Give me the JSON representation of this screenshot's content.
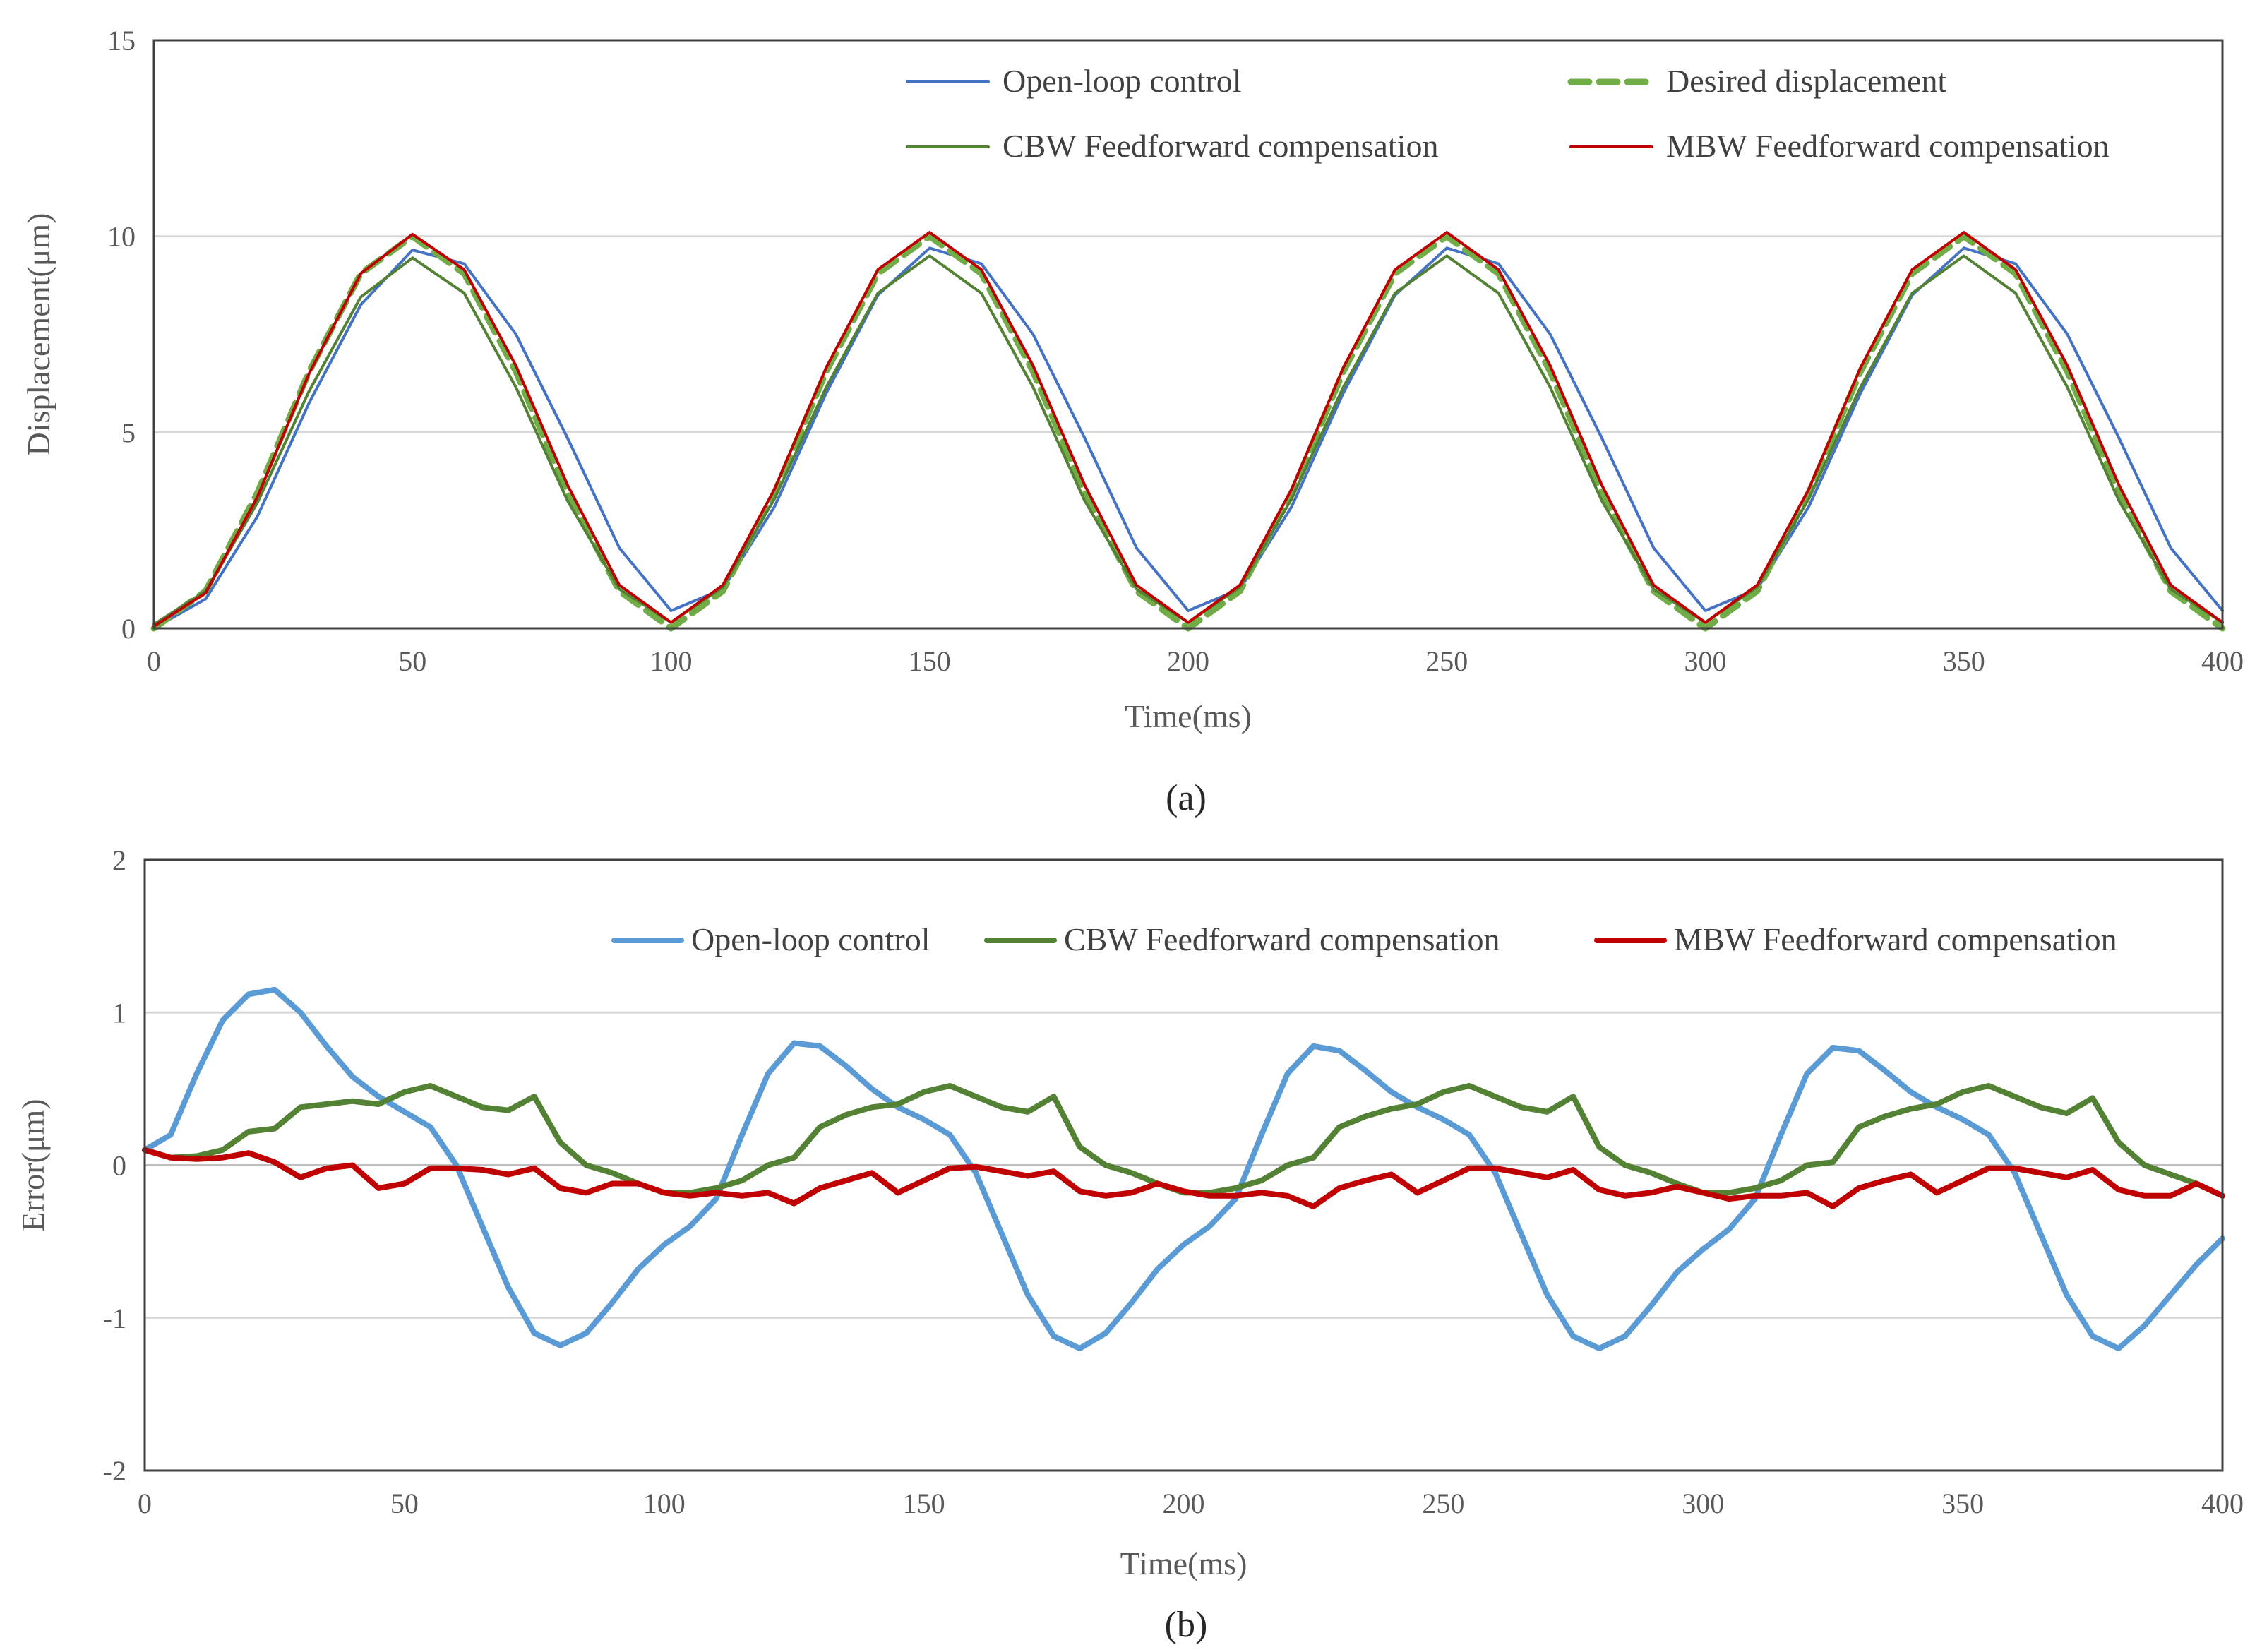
{
  "chart_data": [
    {
      "type": "line",
      "panel_caption": "(a)",
      "xlabel": "Time(ms)",
      "ylabel": "Displacement(μm)",
      "xlim": [
        0,
        400
      ],
      "ylim": [
        0,
        15
      ],
      "x_ticks": [
        0,
        50,
        100,
        150,
        200,
        250,
        300,
        350,
        400
      ],
      "y_ticks": [
        0,
        5,
        10,
        15
      ],
      "grid": "horizontal",
      "legend_position": "top-right",
      "x": [
        0,
        10,
        20,
        30,
        40,
        50,
        60,
        70,
        80,
        90,
        100,
        110,
        120,
        130,
        140,
        150,
        160,
        170,
        180,
        190,
        200,
        210,
        220,
        230,
        240,
        250,
        260,
        270,
        280,
        290,
        300,
        310,
        320,
        330,
        340,
        350,
        360,
        370,
        380,
        390,
        400
      ],
      "series": [
        {
          "name": "Open-loop control",
          "color": "#4472C4",
          "style": "solid",
          "values": [
            0.0,
            0.75,
            2.85,
            5.75,
            8.25,
            9.65,
            9.3,
            7.5,
            4.85,
            2.05,
            0.45,
            1.0,
            3.1,
            6.0,
            8.5,
            9.7,
            9.3,
            7.5,
            4.85,
            2.05,
            0.45,
            1.0,
            3.1,
            6.0,
            8.5,
            9.7,
            9.3,
            7.5,
            4.85,
            2.05,
            0.45,
            1.0,
            3.1,
            6.0,
            8.5,
            9.7,
            9.3,
            7.5,
            4.85,
            2.05,
            0.45
          ]
        },
        {
          "name": "Desired displacement",
          "color": "#70AD47",
          "style": "dashed",
          "values": [
            0.0,
            0.95,
            3.45,
            6.55,
            9.05,
            10.0,
            9.05,
            6.55,
            3.45,
            0.95,
            0.0,
            0.95,
            3.45,
            6.55,
            9.05,
            10.0,
            9.05,
            6.55,
            3.45,
            0.95,
            0.0,
            0.95,
            3.45,
            6.55,
            9.05,
            10.0,
            9.05,
            6.55,
            3.45,
            0.95,
            0.0,
            0.95,
            3.45,
            6.55,
            9.05,
            10.0,
            9.05,
            6.55,
            3.45,
            0.95,
            0.0
          ]
        },
        {
          "name": "CBW Feedforward compensation",
          "color": "#548235",
          "style": "solid",
          "values": [
            0.1,
            0.95,
            3.2,
            6.05,
            8.45,
            9.45,
            8.55,
            6.15,
            3.25,
            1.0,
            0.15,
            1.05,
            3.3,
            6.15,
            8.55,
            9.5,
            8.55,
            6.15,
            3.25,
            1.0,
            0.15,
            1.05,
            3.3,
            6.15,
            8.55,
            9.5,
            8.55,
            6.15,
            3.25,
            1.0,
            0.15,
            1.05,
            3.3,
            6.15,
            8.55,
            9.5,
            8.55,
            6.15,
            3.25,
            1.0,
            0.15
          ]
        },
        {
          "name": "MBW Feedforward compensation",
          "color": "#C00000",
          "style": "solid",
          "values": [
            0.05,
            0.9,
            3.35,
            6.5,
            9.05,
            10.05,
            9.15,
            6.7,
            3.65,
            1.1,
            0.15,
            1.1,
            3.55,
            6.65,
            9.15,
            10.1,
            9.15,
            6.7,
            3.65,
            1.1,
            0.15,
            1.1,
            3.55,
            6.65,
            9.15,
            10.1,
            9.15,
            6.7,
            3.65,
            1.1,
            0.15,
            1.1,
            3.55,
            6.65,
            9.15,
            10.1,
            9.15,
            6.7,
            3.65,
            1.1,
            0.15
          ]
        }
      ]
    },
    {
      "type": "line",
      "panel_caption": "(b)",
      "xlabel": "Time(ms)",
      "ylabel": "Error(μm)",
      "xlim": [
        0,
        400
      ],
      "ylim": [
        -2,
        2
      ],
      "x_ticks": [
        0,
        50,
        100,
        150,
        200,
        250,
        300,
        350,
        400
      ],
      "y_ticks": [
        -2,
        -1,
        0,
        1,
        2
      ],
      "grid": "horizontal",
      "legend_position": "top-right",
      "x": [
        0,
        5,
        10,
        15,
        20,
        25,
        30,
        35,
        40,
        45,
        50,
        55,
        60,
        65,
        70,
        75,
        80,
        85,
        90,
        95,
        100,
        105,
        110,
        115,
        120,
        125,
        130,
        135,
        140,
        145,
        150,
        155,
        160,
        165,
        170,
        175,
        180,
        185,
        190,
        195,
        200,
        205,
        210,
        215,
        220,
        225,
        230,
        235,
        240,
        245,
        250,
        255,
        260,
        265,
        270,
        275,
        280,
        285,
        290,
        295,
        300,
        305,
        310,
        315,
        320,
        325,
        330,
        335,
        340,
        345,
        350,
        355,
        360,
        365,
        370,
        375,
        380,
        385,
        390,
        395,
        400
      ],
      "series": [
        {
          "name": "Open-loop control",
          "color": "#5B9BD5",
          "values": [
            0.1,
            0.2,
            0.6,
            0.95,
            1.12,
            1.15,
            1.0,
            0.78,
            0.58,
            0.45,
            0.35,
            0.25,
            0.0,
            -0.4,
            -0.8,
            -1.1,
            -1.18,
            -1.1,
            -0.9,
            -0.68,
            -0.52,
            -0.4,
            -0.22,
            0.2,
            0.6,
            0.8,
            0.78,
            0.65,
            0.5,
            0.38,
            0.3,
            0.2,
            -0.05,
            -0.45,
            -0.85,
            -1.12,
            -1.2,
            -1.1,
            -0.9,
            -0.68,
            -0.52,
            -0.4,
            -0.22,
            0.2,
            0.6,
            0.78,
            0.75,
            0.62,
            0.48,
            0.38,
            0.3,
            0.2,
            -0.05,
            -0.45,
            -0.85,
            -1.12,
            -1.2,
            -1.12,
            -0.92,
            -0.7,
            -0.55,
            -0.42,
            -0.22,
            0.2,
            0.6,
            0.77,
            0.75,
            0.62,
            0.48,
            0.38,
            0.3,
            0.2,
            -0.05,
            -0.45,
            -0.85,
            -1.12,
            -1.2,
            -1.05,
            -0.85,
            -0.65,
            -0.48
          ]
        },
        {
          "name": "CBW Feedforward compensation",
          "color": "#548235",
          "values": [
            0.1,
            0.05,
            0.06,
            0.1,
            0.22,
            0.24,
            0.38,
            0.4,
            0.42,
            0.4,
            0.48,
            0.52,
            0.45,
            0.38,
            0.36,
            0.45,
            0.15,
            0.0,
            -0.05,
            -0.12,
            -0.18,
            -0.18,
            -0.15,
            -0.1,
            0.0,
            0.05,
            0.25,
            0.33,
            0.38,
            0.4,
            0.48,
            0.52,
            0.45,
            0.38,
            0.35,
            0.45,
            0.12,
            0.0,
            -0.05,
            -0.12,
            -0.18,
            -0.18,
            -0.15,
            -0.1,
            0.0,
            0.05,
            0.25,
            0.32,
            0.37,
            0.4,
            0.48,
            0.52,
            0.45,
            0.38,
            0.35,
            0.45,
            0.12,
            0.0,
            -0.05,
            -0.12,
            -0.18,
            -0.18,
            -0.15,
            -0.1,
            0.0,
            0.02,
            0.25,
            0.32,
            0.37,
            0.4,
            0.48,
            0.52,
            0.45,
            0.38,
            0.34,
            0.44,
            0.15,
            0.0,
            -0.06,
            -0.12,
            -0.2
          ]
        },
        {
          "name": "MBW Feedforward compensation",
          "color": "#C00000",
          "values": [
            0.1,
            0.05,
            0.04,
            0.05,
            0.08,
            0.02,
            -0.08,
            -0.02,
            0.0,
            -0.15,
            -0.12,
            -0.02,
            -0.02,
            -0.03,
            -0.06,
            -0.02,
            -0.15,
            -0.18,
            -0.12,
            -0.12,
            -0.18,
            -0.2,
            -0.18,
            -0.2,
            -0.18,
            -0.25,
            -0.15,
            -0.1,
            -0.05,
            -0.18,
            -0.1,
            -0.02,
            -0.01,
            -0.04,
            -0.07,
            -0.04,
            -0.17,
            -0.2,
            -0.18,
            -0.12,
            -0.17,
            -0.2,
            -0.2,
            -0.18,
            -0.2,
            -0.27,
            -0.15,
            -0.1,
            -0.06,
            -0.18,
            -0.1,
            -0.02,
            -0.02,
            -0.05,
            -0.08,
            -0.03,
            -0.16,
            -0.2,
            -0.18,
            -0.14,
            -0.18,
            -0.22,
            -0.2,
            -0.2,
            -0.18,
            -0.27,
            -0.15,
            -0.1,
            -0.06,
            -0.18,
            -0.1,
            -0.02,
            -0.02,
            -0.05,
            -0.08,
            -0.03,
            -0.16,
            -0.2,
            -0.2,
            -0.12,
            -0.2
          ]
        }
      ]
    }
  ]
}
